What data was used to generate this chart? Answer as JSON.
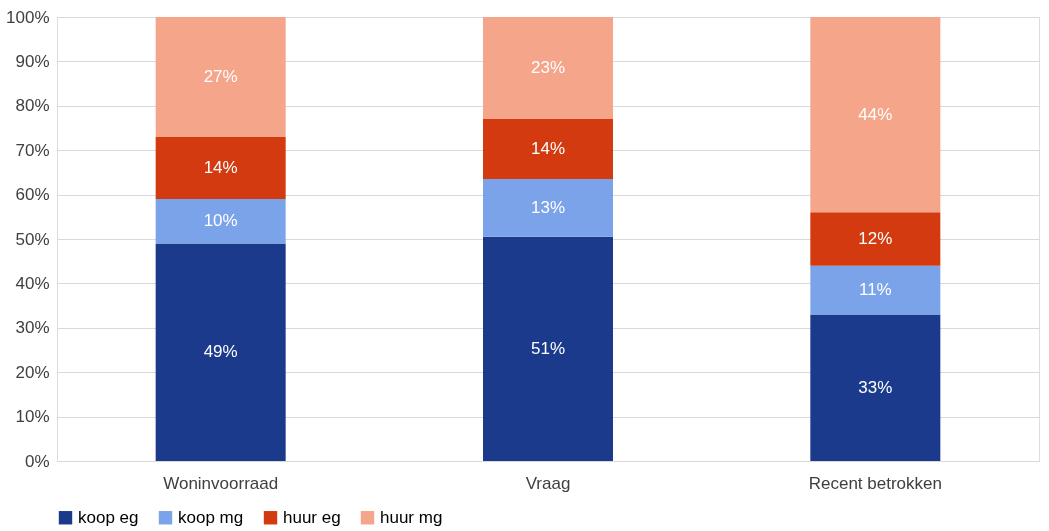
{
  "chart_data": {
    "type": "bar",
    "stacked": true,
    "categories": [
      "Woninvoorraad",
      "Vraag",
      "Recent betrokken"
    ],
    "series": [
      {
        "name": "koop eg",
        "color": "#1b3a8c",
        "values": [
          49,
          50.5,
          33
        ],
        "value_labels": [
          "49%",
          "51%",
          "33%"
        ]
      },
      {
        "name": "koop mg",
        "color": "#7ba3ea",
        "values": [
          10,
          13,
          11
        ],
        "value_labels": [
          "10%",
          "13%",
          "11%"
        ]
      },
      {
        "name": "huur eg",
        "color": "#d33a0f",
        "values": [
          14,
          13.5,
          12
        ],
        "value_labels": [
          "14%",
          "14%",
          "12%"
        ]
      },
      {
        "name": "huur mg",
        "color": "#f4a58a",
        "values": [
          27,
          23,
          44
        ],
        "value_labels": [
          "27%",
          "23%",
          "44%"
        ]
      }
    ],
    "ylim": [
      0,
      100
    ],
    "yticks": [
      {
        "value": 0,
        "label": "0%"
      },
      {
        "value": 10,
        "label": "10%"
      },
      {
        "value": 20,
        "label": "20%"
      },
      {
        "value": 30,
        "label": "30%"
      },
      {
        "value": 40,
        "label": "40%"
      },
      {
        "value": 50,
        "label": "50%"
      },
      {
        "value": 60,
        "label": "60%"
      },
      {
        "value": 70,
        "label": "70%"
      },
      {
        "value": 80,
        "label": "80%"
      },
      {
        "value": 90,
        "label": "90%"
      },
      {
        "value": 100,
        "label": "100%"
      }
    ],
    "grid": "y",
    "legend": "bottom"
  }
}
